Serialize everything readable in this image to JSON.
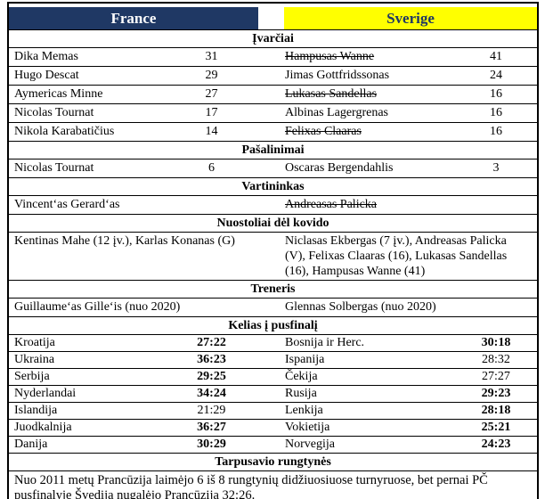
{
  "header": {
    "left_team": "France",
    "right_team": "Sverige",
    "left_bg": "#1F3864",
    "right_bg": "#FFFF00",
    "right_text_color": "#1F3864"
  },
  "sections": {
    "goals": {
      "title": "Įvarčiai",
      "rows": [
        {
          "l_name": "Dika Memas",
          "l_val": "31",
          "l_strike": false,
          "l_bold": false,
          "r_name": "Hampusas Wanne",
          "r_val": "41",
          "r_strike": true,
          "r_bold": false
        },
        {
          "l_name": "Hugo Descat",
          "l_val": "29",
          "l_strike": false,
          "l_bold": false,
          "r_name": "Jimas Gottfridssonas",
          "r_val": "24",
          "r_strike": false,
          "r_bold": false
        },
        {
          "l_name": "Aymericas Minne",
          "l_val": "27",
          "l_strike": false,
          "l_bold": false,
          "r_name": "Lukasas Sandellas",
          "r_val": "16",
          "r_strike": true,
          "r_bold": false
        },
        {
          "l_name": "Nicolas Tournat",
          "l_val": "17",
          "l_strike": false,
          "l_bold": false,
          "r_name": "Albinas Lagergrenas",
          "r_val": "16",
          "r_strike": false,
          "r_bold": false
        },
        {
          "l_name": "Nikola Karabatičius",
          "l_val": "14",
          "l_strike": false,
          "l_bold": false,
          "r_name": "Felixas Claaras",
          "r_val": "16",
          "r_strike": true,
          "r_bold": false
        }
      ]
    },
    "suspensions": {
      "title": "Pašalinimai",
      "rows": [
        {
          "l_name": "Nicolas Tournat",
          "l_val": "6",
          "l_strike": false,
          "l_bold": false,
          "r_name": "Oscaras Bergendahlis",
          "r_val": "3",
          "r_strike": false,
          "r_bold": false
        }
      ]
    },
    "goalkeeper": {
      "title": "Vartininkas",
      "left": "Vincent‘as Gerard‘as",
      "right": "Andreasas Palicka",
      "right_strike": true
    },
    "covid": {
      "title": "Nuostoliai dėl kovido",
      "left": "Kentinas Mahe (12 įv.), Karlas Konanas (G)",
      "right": "Niclasas Ekbergas (7 įv.), Andreasas Palicka (V), Felixas Claaras (16), Lukasas Sandellas (16), Hampusas Wanne (41)"
    },
    "coach": {
      "title": "Treneris",
      "left": "Guillaume‘as Gille‘is (nuo 2020)",
      "right": "Glennas Solbergas (nuo 2020)"
    },
    "road": {
      "title": "Kelias į pusfinalį",
      "rows": [
        {
          "l_name": "Kroatija",
          "l_val": "27:22",
          "l_bold": true,
          "l_strike": false,
          "r_name": "Bosnija ir Herc.",
          "r_val": "30:18",
          "r_bold": true,
          "r_strike": false
        },
        {
          "l_name": "Ukraina",
          "l_val": "36:23",
          "l_bold": true,
          "l_strike": false,
          "r_name": "Ispanija",
          "r_val": "28:32",
          "r_bold": false,
          "r_strike": false
        },
        {
          "l_name": "Serbija",
          "l_val": "29:25",
          "l_bold": true,
          "l_strike": false,
          "r_name": "Čekija",
          "r_val": "27:27",
          "r_bold": false,
          "r_strike": false
        },
        {
          "l_name": "Nyderlandai",
          "l_val": "34:24",
          "l_bold": true,
          "l_strike": false,
          "r_name": "Rusija",
          "r_val": "29:23",
          "r_bold": true,
          "r_strike": false
        },
        {
          "l_name": "Islandija",
          "l_val": "21:29",
          "l_bold": false,
          "l_strike": false,
          "r_name": "Lenkija",
          "r_val": "28:18",
          "r_bold": true,
          "r_strike": false
        },
        {
          "l_name": "Juodkalnija",
          "l_val": "36:27",
          "l_bold": true,
          "l_strike": false,
          "r_name": "Vokietija",
          "r_val": "25:21",
          "r_bold": true,
          "r_strike": false
        },
        {
          "l_name": "Danija",
          "l_val": "30:29",
          "l_bold": true,
          "l_strike": false,
          "r_name": "Norvegija",
          "r_val": "24:23",
          "r_bold": true,
          "r_strike": false
        }
      ]
    },
    "head_to_head": {
      "title": "Tarpusavio rungtynės",
      "text": "Nuo 2011 metų Prancūzija laimėjo 6 iš 8 rungtynių didžiuosiuose turnyruose, bet pernai PČ pusfinalyje Švedija nugalėjo Prancūziją 32:26."
    }
  }
}
